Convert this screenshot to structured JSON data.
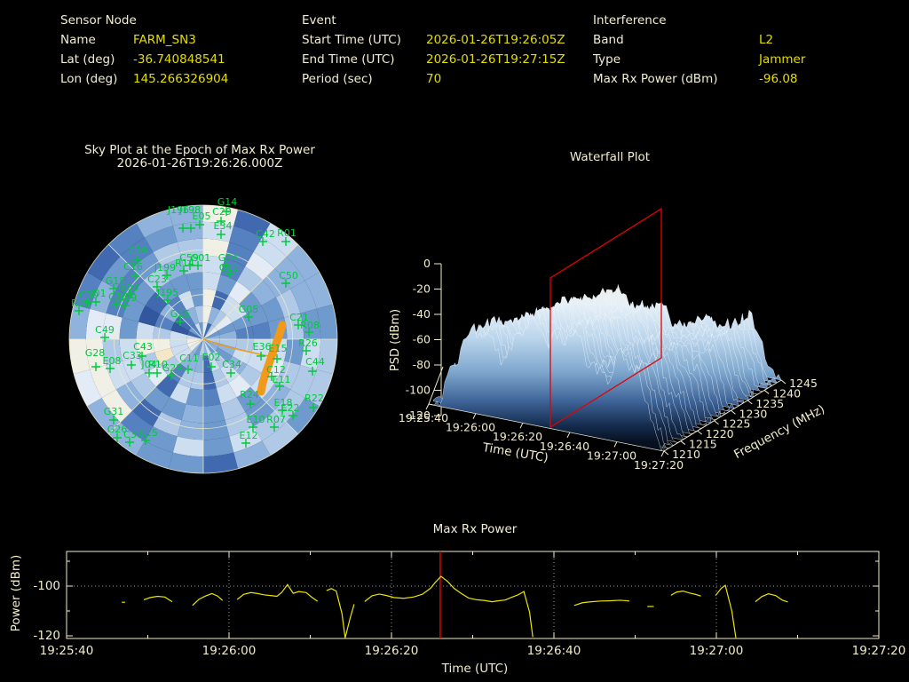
{
  "header": {
    "sensor_node": {
      "title": "Sensor Node",
      "rows": [
        {
          "label": "Name",
          "value": "FARM_SN3"
        },
        {
          "label": "Lat (deg)",
          "value": "-36.740848541"
        },
        {
          "label": "Lon (deg)",
          "value": "145.266326904"
        }
      ]
    },
    "event": {
      "title": "Event",
      "rows": [
        {
          "label": "Start Time (UTC)",
          "value": "2026-01-26T19:26:05Z"
        },
        {
          "label": "End Time (UTC)",
          "value": "2026-01-26T19:27:15Z"
        },
        {
          "label": "Period (sec)",
          "value": "70"
        }
      ]
    },
    "interference": {
      "title": "Interference",
      "rows": [
        {
          "label": "Band",
          "value": "L2"
        },
        {
          "label": "Type",
          "value": "Jammer"
        },
        {
          "label": "Max Rx Power (dBm)",
          "value": "-96.08"
        }
      ]
    }
  },
  "colors": {
    "background": "#000000",
    "label_text": "#f1edd2",
    "value_text": "#e4de00",
    "axis": "#f0ecca",
    "grid_dots": "#9a9a9a",
    "satellite_green": "#00c83c",
    "track_orange": "#f0991a",
    "epoch_red": "#e60000",
    "trace_yellow": "#ece400"
  },
  "chart_data": [
    {
      "type": "heatmap",
      "subtype": "polar-sky-heatmap",
      "title": "Sky Plot at the Epoch of Max Rx Power",
      "epoch": "2026-01-26T19:26:26.000Z",
      "rings": 8,
      "sectors": 24,
      "grid_circles": 3,
      "spoke_step_deg": 45,
      "palette": [
        "#27488f",
        "#33579f",
        "#4169b0",
        "#5581c1",
        "#6f9ace",
        "#8fb3dc",
        "#afc9e7",
        "#cddef0",
        "#e3ecf6",
        "#f0f0e6",
        "#f4e7c8",
        "#f2d49c"
      ],
      "highlight_sectors": [
        0,
        16
      ],
      "satellites": [
        [
          "G14",
          256,
          227,
          255,
          238
        ],
        [
          "C29",
          250,
          238,
          249,
          249
        ],
        [
          "J196",
          201,
          236,
          206,
          257
        ],
        [
          "J198",
          214,
          236,
          215,
          257
        ],
        [
          "E05",
          227,
          243,
          225,
          253
        ],
        [
          "E34",
          251,
          254,
          249,
          264
        ],
        [
          "C42",
          299,
          263,
          296,
          272
        ],
        [
          "R01",
          323,
          262,
          322,
          272
        ],
        [
          "C39",
          155,
          282,
          155,
          292
        ],
        [
          "C16",
          150,
          300,
          152,
          311
        ],
        [
          "C59",
          213,
          290,
          214,
          299
        ],
        [
          "G01",
          226,
          290,
          223,
          299
        ],
        [
          "R14",
          208,
          296,
          207,
          305
        ],
        [
          "J199",
          186,
          301,
          188,
          310
        ],
        [
          "G04",
          257,
          290,
          255,
          299
        ],
        [
          "G12",
          258,
          301,
          259,
          309
        ],
        [
          "C50",
          325,
          310,
          322,
          319
        ],
        [
          "G18",
          130,
          316,
          128,
          325
        ],
        [
          "E03",
          146,
          323,
          147,
          331
        ],
        [
          "C23",
          177,
          314,
          177,
          323
        ],
        [
          "J195",
          189,
          329,
          189,
          338
        ],
        [
          "C30",
          100,
          332,
          98,
          341
        ],
        [
          "J01",
          111,
          330,
          108,
          340
        ],
        [
          "R09",
          91,
          341,
          89,
          350
        ],
        [
          "C36",
          133,
          334,
          131,
          343
        ],
        [
          "G09",
          143,
          335,
          141,
          344
        ],
        [
          "G25",
          203,
          353,
          203,
          362
        ],
        [
          "G05",
          280,
          348,
          280,
          357
        ],
        [
          "C21",
          337,
          357,
          336,
          366
        ],
        [
          "R08",
          349,
          366,
          348,
          374
        ],
        [
          "C49",
          118,
          371,
          118,
          380
        ],
        [
          "G28",
          107,
          397,
          108,
          413
        ],
        [
          "E08",
          126,
          406,
          124,
          415
        ],
        [
          "C33",
          149,
          400,
          148,
          411
        ],
        [
          "C43",
          161,
          390,
          160,
          401
        ],
        [
          "J04",
          168,
          410,
          168,
          420
        ],
        [
          "R10",
          178,
          410,
          177,
          420
        ],
        [
          "G29",
          194,
          414,
          193,
          423
        ],
        [
          "C11",
          213,
          403,
          212,
          416
        ],
        [
          "E02",
          238,
          402,
          238,
          413
        ],
        [
          "C34",
          261,
          410,
          260,
          420
        ],
        [
          "E36",
          295,
          390,
          294,
          401
        ],
        [
          "E15",
          313,
          392,
          312,
          404
        ],
        [
          "C12",
          311,
          416,
          306,
          424
        ],
        [
          "E11",
          317,
          427,
          315,
          435
        ],
        [
          "R24",
          281,
          444,
          282,
          455
        ],
        [
          "E18",
          319,
          453,
          318,
          462
        ],
        [
          "E22",
          327,
          459,
          330,
          468
        ],
        [
          "R22",
          354,
          448,
          353,
          459
        ],
        [
          "C44",
          355,
          407,
          352,
          418
        ],
        [
          "R26",
          347,
          386,
          345,
          395
        ],
        [
          "G31",
          128,
          463,
          128,
          473
        ],
        [
          "G26",
          132,
          483,
          132,
          493
        ],
        [
          "C37",
          150,
          489,
          146,
          498
        ],
        [
          "R15",
          167,
          487,
          164,
          496
        ],
        [
          "E10",
          288,
          472,
          285,
          481
        ],
        [
          "R07",
          311,
          472,
          309,
          481
        ],
        [
          "E12",
          280,
          490,
          277,
          499
        ]
      ],
      "jammer_track": [
        [
          318,
          366
        ],
        [
          315,
          376
        ],
        [
          311,
          387
        ],
        [
          307,
          398
        ],
        [
          303,
          410
        ],
        [
          299,
          421
        ],
        [
          296,
          431
        ],
        [
          294,
          441
        ]
      ],
      "track_center_line": [
        [
          229,
          382
        ],
        [
          247,
          388
        ],
        [
          266,
          393
        ],
        [
          284,
          397
        ],
        [
          302,
          401
        ]
      ]
    },
    {
      "type": "surface",
      "subtype": "3d-waterfall",
      "title": "Waterfall Plot",
      "xlabel": "Time (UTC)",
      "ylabel": "Frequency (MHz)",
      "zlabel": "PSD (dBm)",
      "x_ticks": [
        "19:25:40",
        "19:26:00",
        "19:26:20",
        "19:26:40",
        "19:27:00",
        "19:27:20"
      ],
      "y_ticks": [
        "1210",
        "1215",
        "1220",
        "1225",
        "1230",
        "1235",
        "1240",
        "1245"
      ],
      "z_ticks": [
        "0",
        "-20",
        "-40",
        "-60",
        "-80",
        "-100",
        "-120"
      ],
      "zlim": [
        -120,
        0
      ],
      "freq_range_mhz": [
        1210,
        1245
      ],
      "epoch_marker_time": "19:26:26",
      "epoch_marker_color": "#e60000"
    },
    {
      "type": "line",
      "title": "Max Rx Power",
      "xlabel": "Time (UTC)",
      "ylabel": "Power (dBm)",
      "x_tick_labels": [
        "19:25:40",
        "19:26:00",
        "19:26:20",
        "19:26:40",
        "19:27:00",
        "19:27:20"
      ],
      "x_tick_seconds": [
        0,
        20,
        40,
        60,
        80,
        100
      ],
      "minor_tick_step_sec": 10,
      "y_ticks": [
        -100,
        -120
      ],
      "y_minor_ticks": [
        -90,
        -110
      ],
      "ylim": [
        -121,
        -86
      ],
      "xlim_sec": [
        0,
        100
      ],
      "epoch_line_sec": 46,
      "epoch_line_label": "19:26:26",
      "peak_dbm": -96.08,
      "segments": [
        [
          [
            6.8,
            -106.5
          ],
          [
            7.2,
            -106.5
          ]
        ],
        [
          [
            9.5,
            -105.5
          ],
          [
            10.3,
            -104.6
          ],
          [
            11.2,
            -104.1
          ],
          [
            12.1,
            -104.4
          ],
          [
            13.0,
            -106.3
          ]
        ],
        [
          [
            15.5,
            -107.8
          ],
          [
            16.3,
            -105.3
          ],
          [
            17.1,
            -104.0
          ],
          [
            17.9,
            -103.0
          ],
          [
            18.6,
            -104.0
          ],
          [
            19.2,
            -105.8
          ]
        ],
        [
          [
            21.0,
            -105.4
          ],
          [
            21.8,
            -103.3
          ],
          [
            22.7,
            -102.6
          ],
          [
            23.5,
            -103.0
          ],
          [
            24.3,
            -103.5
          ],
          [
            25.1,
            -103.8
          ],
          [
            25.9,
            -104.1
          ],
          [
            26.5,
            -102.5
          ],
          [
            27.2,
            -99.4
          ],
          [
            27.9,
            -102.9
          ],
          [
            28.6,
            -102.2
          ],
          [
            29.5,
            -102.6
          ],
          [
            30.2,
            -104.5
          ],
          [
            30.9,
            -106.1
          ]
        ],
        [
          [
            32.0,
            -101.8
          ],
          [
            32.6,
            -101.0
          ],
          [
            33.2,
            -102.0
          ],
          [
            33.9,
            -111.0
          ],
          [
            34.3,
            -120.8
          ],
          [
            34.9,
            -113.0
          ],
          [
            35.4,
            -107.3
          ]
        ],
        [
          [
            36.7,
            -106.2
          ],
          [
            37.6,
            -103.9
          ],
          [
            38.5,
            -103.2
          ],
          [
            39.4,
            -103.8
          ],
          [
            40.3,
            -104.6
          ],
          [
            41.5,
            -104.9
          ],
          [
            42.7,
            -104.4
          ],
          [
            43.8,
            -103.3
          ],
          [
            44.8,
            -100.9
          ],
          [
            45.4,
            -98.5
          ],
          [
            46.1,
            -96.1
          ],
          [
            46.9,
            -98.1
          ],
          [
            47.7,
            -100.9
          ],
          [
            48.6,
            -103.0
          ],
          [
            49.5,
            -104.8
          ],
          [
            50.5,
            -105.5
          ],
          [
            51.5,
            -105.8
          ],
          [
            52.4,
            -106.3
          ],
          [
            53.2,
            -105.9
          ],
          [
            54.0,
            -105.6
          ],
          [
            54.8,
            -104.5
          ],
          [
            55.6,
            -103.5
          ],
          [
            56.3,
            -102.2
          ],
          [
            57.0,
            -110.5
          ],
          [
            57.4,
            -120.5
          ]
        ],
        [
          [
            62.5,
            -107.8
          ],
          [
            63.5,
            -106.7
          ],
          [
            64.6,
            -106.3
          ],
          [
            65.8,
            -106.0
          ],
          [
            67.0,
            -105.9
          ],
          [
            68.2,
            -105.7
          ],
          [
            69.3,
            -106.0
          ]
        ],
        [
          [
            71.5,
            -108.2
          ],
          [
            72.3,
            -108.2
          ]
        ],
        [
          [
            74.4,
            -103.7
          ],
          [
            75.1,
            -102.4
          ],
          [
            75.9,
            -102.0
          ],
          [
            76.7,
            -102.8
          ],
          [
            77.4,
            -103.3
          ],
          [
            78.1,
            -104.0
          ]
        ],
        [
          [
            79.9,
            -103.8
          ],
          [
            80.6,
            -100.9
          ],
          [
            81.1,
            -99.7
          ],
          [
            81.9,
            -110.0
          ],
          [
            82.4,
            -120.8
          ]
        ],
        [
          [
            84.8,
            -106.3
          ],
          [
            85.6,
            -104.2
          ],
          [
            86.4,
            -103.1
          ],
          [
            87.3,
            -103.8
          ],
          [
            88.1,
            -105.6
          ],
          [
            88.8,
            -106.4
          ]
        ]
      ]
    }
  ]
}
